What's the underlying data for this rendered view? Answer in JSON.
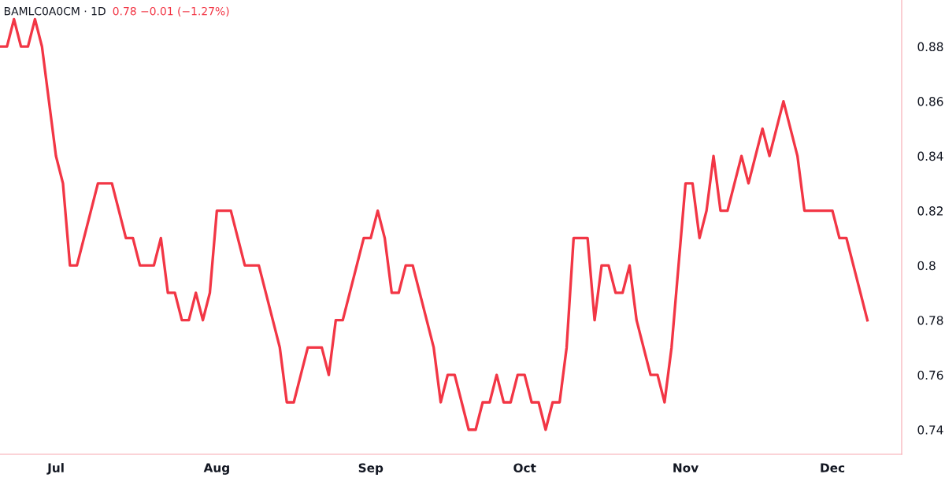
{
  "chart_data": {
    "type": "line",
    "title": "BAMLC0A0CM · 1D",
    "subtitle": "0.78 −0.01 (−1.27%)",
    "categories": [
      null,
      null,
      null,
      null,
      null,
      null,
      null,
      null,
      "Jul",
      null,
      null,
      null,
      null,
      null,
      null,
      null,
      null,
      null,
      null,
      null,
      null,
      null,
      null,
      null,
      null,
      null,
      null,
      null,
      null,
      null,
      null,
      "Aug",
      null,
      null,
      null,
      null,
      null,
      null,
      null,
      null,
      null,
      null,
      null,
      null,
      null,
      null,
      null,
      null,
      null,
      null,
      null,
      null,
      null,
      "Sep",
      null,
      null,
      null,
      null,
      null,
      null,
      null,
      null,
      null,
      null,
      null,
      null,
      null,
      null,
      null,
      null,
      null,
      null,
      null,
      null,
      null,
      "Oct",
      null,
      null,
      null,
      null,
      null,
      null,
      null,
      null,
      null,
      null,
      null,
      null,
      null,
      null,
      null,
      null,
      null,
      null,
      null,
      null,
      null,
      null,
      "Nov",
      null,
      null,
      null,
      null,
      null,
      null,
      null,
      null,
      null,
      null,
      null,
      null,
      null,
      null,
      null,
      null,
      null,
      null,
      null,
      null,
      "Dec",
      null,
      null,
      null,
      null,
      null
    ],
    "series": [
      {
        "color": "#f23645",
        "values": [
          0.88,
          0.88,
          0.89,
          0.88,
          0.88,
          0.89,
          0.88,
          0.86,
          0.84,
          0.83,
          0.8,
          0.8,
          0.81,
          0.82,
          0.83,
          0.83,
          0.83,
          0.82,
          0.81,
          0.81,
          0.8,
          0.8,
          0.8,
          0.81,
          0.79,
          0.79,
          0.78,
          0.78,
          0.79,
          0.78,
          0.79,
          0.82,
          0.82,
          0.82,
          0.81,
          0.8,
          0.8,
          0.8,
          0.79,
          0.78,
          0.77,
          0.75,
          0.75,
          0.76,
          0.77,
          0.77,
          0.77,
          0.76,
          0.78,
          0.78,
          0.79,
          0.8,
          0.81,
          0.81,
          0.82,
          0.81,
          0.79,
          0.79,
          0.8,
          0.8,
          0.79,
          0.78,
          0.77,
          0.75,
          0.76,
          0.76,
          0.75,
          0.74,
          0.74,
          0.75,
          0.75,
          0.76,
          0.75,
          0.75,
          0.76,
          0.76,
          0.75,
          0.75,
          0.74,
          0.75,
          0.75,
          0.77,
          0.81,
          0.81,
          0.81,
          0.78,
          0.8,
          0.8,
          0.79,
          0.79,
          0.8,
          0.78,
          0.77,
          0.76,
          0.76,
          0.75,
          0.77,
          0.8,
          0.83,
          0.83,
          0.81,
          0.82,
          0.84,
          0.82,
          0.82,
          0.83,
          0.84,
          0.83,
          0.84,
          0.85,
          0.84,
          0.85,
          0.86,
          0.85,
          0.84,
          0.82,
          0.82,
          0.82,
          0.82,
          0.82,
          0.81,
          0.81,
          0.8,
          0.79,
          0.78
        ]
      }
    ],
    "ylim": [
      0.731,
      0.897
    ],
    "yticks": [
      0.74,
      0.76,
      0.78,
      0.8,
      0.82,
      0.84,
      0.86,
      0.88
    ],
    "grid": false,
    "legend": false,
    "marker": "none",
    "line_style": "solid"
  }
}
